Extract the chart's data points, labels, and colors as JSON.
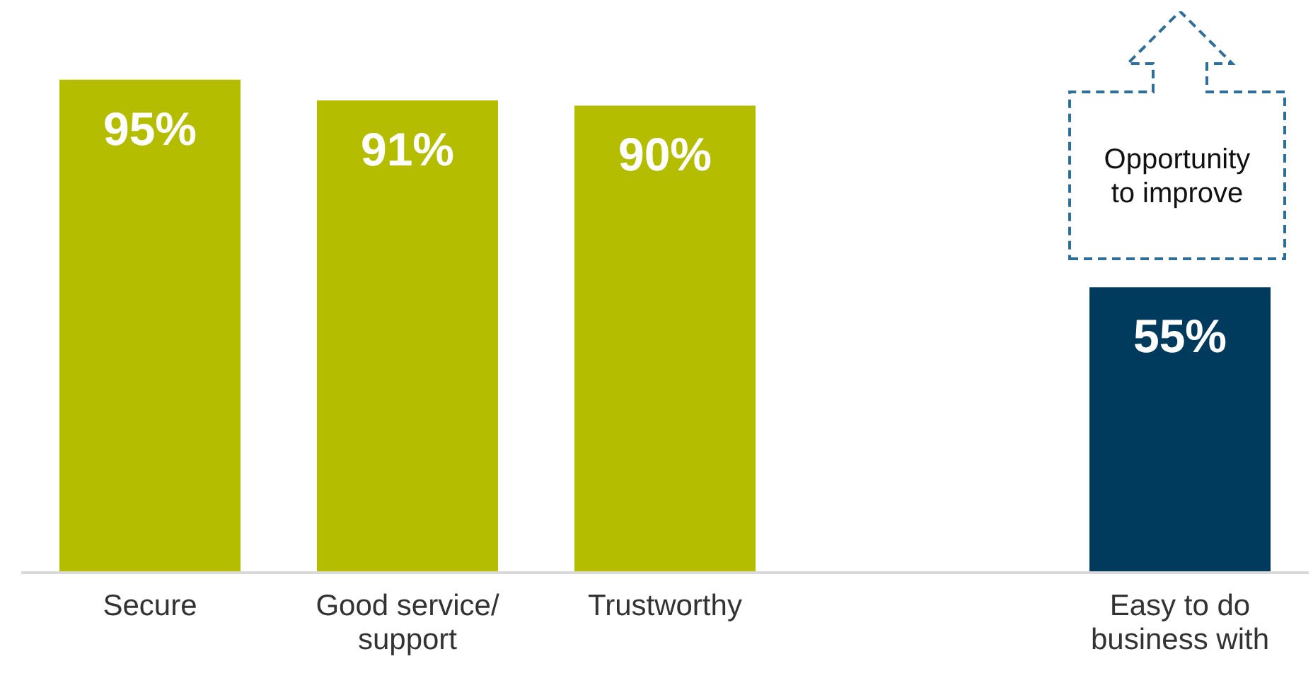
{
  "chart_data": {
    "type": "bar",
    "categories": [
      "Secure",
      "Good service/ support",
      "Trustworthy",
      null,
      "Easy to do business with"
    ],
    "values": [
      95,
      91,
      90,
      null,
      55
    ],
    "colors": [
      "#b5bd00",
      "#b5bd00",
      "#b5bd00",
      null,
      "#003a5d"
    ],
    "value_labels": [
      "95%",
      "91%",
      "90%",
      null,
      "55%"
    ],
    "annotations": [
      "Opportunity to improve"
    ]
  }
}
